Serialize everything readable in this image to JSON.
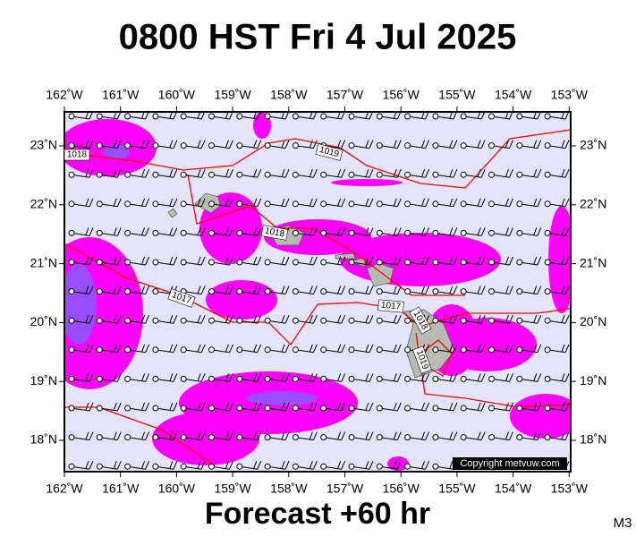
{
  "title": "0800 HST Fri 4 Jul 2025",
  "map": {
    "lon_labels": [
      "162˚W",
      "161˚W",
      "160˚W",
      "159˚W",
      "158˚W",
      "157˚W",
      "156˚W",
      "155˚W",
      "154˚W",
      "153˚W"
    ],
    "lat_labels": [
      "23˚N",
      "22˚N",
      "21˚N",
      "20˚N",
      "19˚N",
      "18˚N"
    ],
    "isobar_labels": [
      "1018",
      "1019",
      "1018",
      "1017",
      "1017",
      "1018",
      "1019"
    ],
    "copyright": "Copyright metvuw.com"
  },
  "footer": "Forecast +60 hr",
  "code": "M3"
}
